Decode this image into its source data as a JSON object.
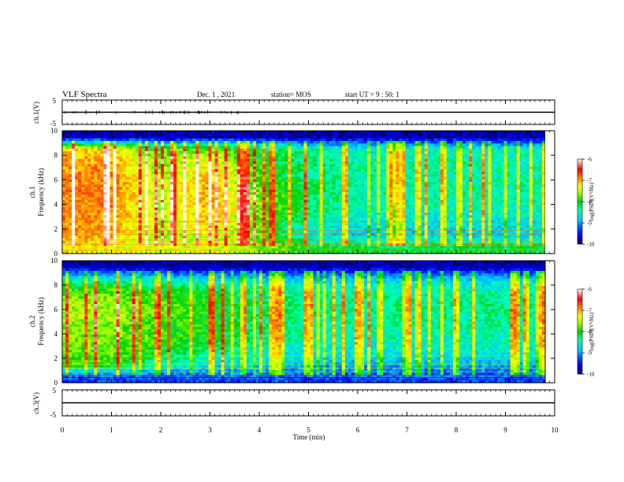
{
  "header": {
    "title": "VLF Spectra",
    "date": "Dec. 1 , 2021",
    "station": "station= MOS",
    "start": "start UT = 9 : 50: 1"
  },
  "chart_data": [
    {
      "id": "ch1-voltage",
      "type": "line",
      "ylabel": "ch.1(V)",
      "ylim": [
        -5,
        5
      ],
      "yticks": [
        "5",
        "-5"
      ],
      "x": [
        0,
        10
      ],
      "values": [
        0,
        0
      ],
      "color": "#000000"
    },
    {
      "id": "ch1-spectrogram",
      "type": "heatmap",
      "ylabel": "ch.1\nFrequency (kHz)",
      "ylim": [
        0,
        10
      ],
      "yticks": [
        "0",
        "2",
        "4",
        "6",
        "8",
        "10"
      ],
      "xlim": [
        0,
        10
      ],
      "colorbar": {
        "label": "log(PSD)(V²/Hz)",
        "ticks": [
          "-6",
          "-7",
          "-8",
          "-9",
          "-10"
        ],
        "range": [
          -10,
          -6
        ]
      },
      "time_min": [
        0,
        1,
        2,
        3,
        4,
        5,
        6,
        7,
        8,
        9,
        9.8
      ],
      "freq_khz": [
        0.5,
        1.5,
        2.5,
        3.5,
        4.5,
        5.5,
        6.5,
        7.5,
        8.5,
        9.5
      ],
      "log_psd": [
        [
          -7.2,
          -7.3,
          -7.4,
          -7.4,
          -7.6,
          -8.0,
          -8.1,
          -8.1,
          -8.1,
          -8.1,
          -8.1
        ],
        [
          -7.0,
          -7.0,
          -7.7,
          -7.4,
          -7.8,
          -8.6,
          -8.8,
          -8.8,
          -8.8,
          -8.8,
          -8.8
        ],
        [
          -6.9,
          -7.0,
          -7.6,
          -7.1,
          -7.8,
          -8.4,
          -8.6,
          -8.7,
          -8.6,
          -8.7,
          -8.7
        ],
        [
          -6.9,
          -6.9,
          -7.5,
          -7.0,
          -7.7,
          -8.2,
          -8.5,
          -8.5,
          -8.5,
          -8.5,
          -8.5
        ],
        [
          -6.9,
          -6.9,
          -7.5,
          -7.0,
          -7.7,
          -8.2,
          -8.4,
          -8.4,
          -8.4,
          -8.4,
          -8.4
        ],
        [
          -6.9,
          -6.9,
          -7.5,
          -7.0,
          -7.8,
          -8.2,
          -8.4,
          -8.4,
          -8.4,
          -8.4,
          -8.4
        ],
        [
          -6.9,
          -6.9,
          -7.6,
          -7.1,
          -7.9,
          -8.3,
          -8.4,
          -8.4,
          -8.4,
          -8.4,
          -8.4
        ],
        [
          -7.0,
          -7.0,
          -7.7,
          -7.3,
          -8.0,
          -8.3,
          -8.4,
          -8.4,
          -8.4,
          -8.4,
          -8.4
        ],
        [
          -7.1,
          -7.2,
          -7.9,
          -7.7,
          -8.1,
          -8.4,
          -8.5,
          -8.5,
          -8.5,
          -8.5,
          -8.5
        ],
        [
          -9.8,
          -9.8,
          -9.8,
          -9.7,
          -9.8,
          -9.8,
          -9.8,
          -9.8,
          -9.8,
          -9.8,
          -9.8
        ]
      ]
    },
    {
      "id": "ch2-spectrogram",
      "type": "heatmap",
      "ylabel": "ch.2\nFrequency (kHz)",
      "ylim": [
        0,
        10
      ],
      "yticks": [
        "0",
        "2",
        "4",
        "6",
        "8",
        "10"
      ],
      "xlim": [
        0,
        10
      ],
      "colorbar": {
        "label": "log(PSD)(V²/Hz)",
        "ticks": [
          "-6",
          "-7",
          "-8",
          "-9",
          "-10"
        ],
        "range": [
          -10,
          -6
        ]
      },
      "time_min": [
        0,
        1,
        2,
        3,
        4,
        5,
        6,
        7,
        8,
        9,
        9.8
      ],
      "freq_khz": [
        0.5,
        1.5,
        2.5,
        3.5,
        4.5,
        5.5,
        6.5,
        7.5,
        8.5,
        9.5
      ],
      "log_psd": [
        [
          -9.3,
          -9.3,
          -9.3,
          -9.3,
          -9.3,
          -9.3,
          -9.3,
          -9.3,
          -9.3,
          -9.3,
          -9.3
        ],
        [
          -7.9,
          -7.9,
          -8.4,
          -8.6,
          -8.7,
          -8.9,
          -8.9,
          -8.9,
          -8.9,
          -8.9,
          -8.9
        ],
        [
          -7.8,
          -7.8,
          -8.1,
          -8.3,
          -8.5,
          -8.6,
          -8.6,
          -8.6,
          -8.6,
          -8.6,
          -8.6
        ],
        [
          -7.7,
          -7.7,
          -7.9,
          -8.0,
          -8.3,
          -8.4,
          -8.5,
          -8.4,
          -8.5,
          -8.4,
          -8.4
        ],
        [
          -7.7,
          -7.7,
          -7.9,
          -8.0,
          -8.2,
          -8.4,
          -8.4,
          -8.4,
          -8.4,
          -8.4,
          -8.4
        ],
        [
          -7.6,
          -7.6,
          -7.8,
          -8.0,
          -8.2,
          -8.3,
          -8.4,
          -8.3,
          -8.4,
          -8.3,
          -8.3
        ],
        [
          -7.6,
          -7.6,
          -7.8,
          -8.0,
          -8.2,
          -8.3,
          -8.3,
          -8.3,
          -8.3,
          -8.3,
          -8.3
        ],
        [
          -7.8,
          -7.8,
          -8.0,
          -8.1,
          -8.3,
          -8.4,
          -8.4,
          -8.4,
          -8.4,
          -8.4,
          -8.4
        ],
        [
          -8.5,
          -8.5,
          -8.6,
          -8.7,
          -8.7,
          -8.8,
          -8.8,
          -8.8,
          -8.8,
          -8.8,
          -8.8
        ],
        [
          -9.8,
          -9.8,
          -9.8,
          -9.8,
          -9.8,
          -9.8,
          -9.8,
          -9.8,
          -9.8,
          -9.8,
          -9.8
        ]
      ]
    },
    {
      "id": "ch3-voltage",
      "type": "line",
      "ylabel": "ch.3(V)",
      "ylim": [
        -5,
        5
      ],
      "yticks": [
        "5",
        "-5"
      ],
      "x": [
        0,
        10
      ],
      "values": [
        0,
        0
      ],
      "color": "#000000"
    }
  ],
  "x_axis": {
    "label": "Time (min)",
    "ticks": [
      "0",
      "1",
      "2",
      "3",
      "4",
      "5",
      "6",
      "7",
      "8",
      "9",
      "10"
    ],
    "range": [
      0,
      10
    ]
  },
  "colormap": [
    "#00006e",
    "#0000ff",
    "#00bfff",
    "#00ffb0",
    "#00d000",
    "#9cff00",
    "#ffff00",
    "#ff8000",
    "#ff0000",
    "#ff9999",
    "#ffffff"
  ]
}
